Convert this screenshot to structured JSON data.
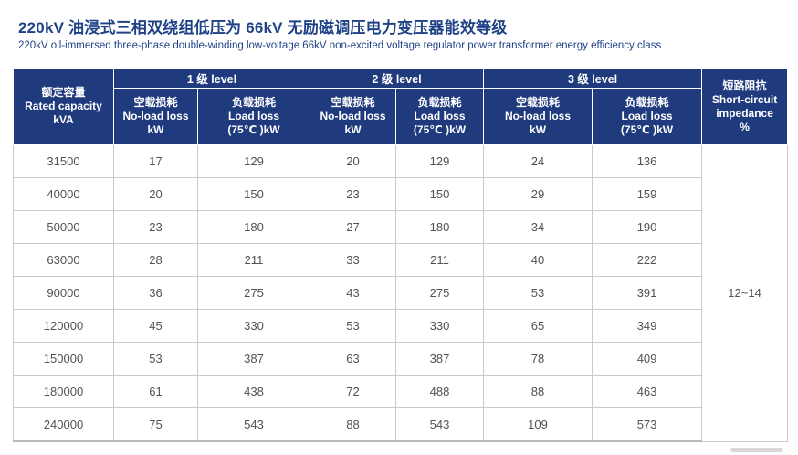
{
  "page": {
    "title": "220kV 油浸式三相双绕组低压为 66kV 无励磁调压电力变压器能效等级",
    "subtitle": "220kV oil-immersed three-phase double-winding low-voltage 66kV non-excited voltage regulator power transformer energy efficiency class"
  },
  "colors": {
    "header_bg": "#203a7e",
    "header_text": "#ffffff",
    "title_text": "#1f4287",
    "data_text": "#525252",
    "grid_line": "#c9c9c9"
  },
  "table": {
    "capacity_header": {
      "zh": "额定容量",
      "en": "Rated capacity",
      "unit": "kVA"
    },
    "level_headers": [
      "1 级 level",
      "2 级 level",
      "3 级 level"
    ],
    "loss_headers": {
      "no_load": {
        "zh": "空载损耗",
        "en": "No-load loss",
        "unit": "kW"
      },
      "load": {
        "zh": "负载损耗",
        "en": "Load loss",
        "unit": "(75℃ )kW"
      }
    },
    "impedance_header": {
      "zh": "短路阻抗",
      "en_line1": "Short-circuit",
      "en_line2": "impedance",
      "unit": "%"
    },
    "impedance_value": "12~14",
    "rows": [
      {
        "capacity": "31500",
        "values": [
          "17",
          "129",
          "20",
          "129",
          "24",
          "136"
        ]
      },
      {
        "capacity": "40000",
        "values": [
          "20",
          "150",
          "23",
          "150",
          "29",
          "159"
        ]
      },
      {
        "capacity": "50000",
        "values": [
          "23",
          "180",
          "27",
          "180",
          "34",
          "190"
        ]
      },
      {
        "capacity": "63000",
        "values": [
          "28",
          "211",
          "33",
          "211",
          "40",
          "222"
        ]
      },
      {
        "capacity": "90000",
        "values": [
          "36",
          "275",
          "43",
          "275",
          "53",
          "391"
        ]
      },
      {
        "capacity": "120000",
        "values": [
          "45",
          "330",
          "53",
          "330",
          "65",
          "349"
        ]
      },
      {
        "capacity": "150000",
        "values": [
          "53",
          "387",
          "63",
          "387",
          "78",
          "409"
        ]
      },
      {
        "capacity": "180000",
        "values": [
          "61",
          "438",
          "72",
          "488",
          "88",
          "463"
        ]
      },
      {
        "capacity": "240000",
        "values": [
          "75",
          "543",
          "88",
          "543",
          "109",
          "573"
        ]
      }
    ]
  }
}
